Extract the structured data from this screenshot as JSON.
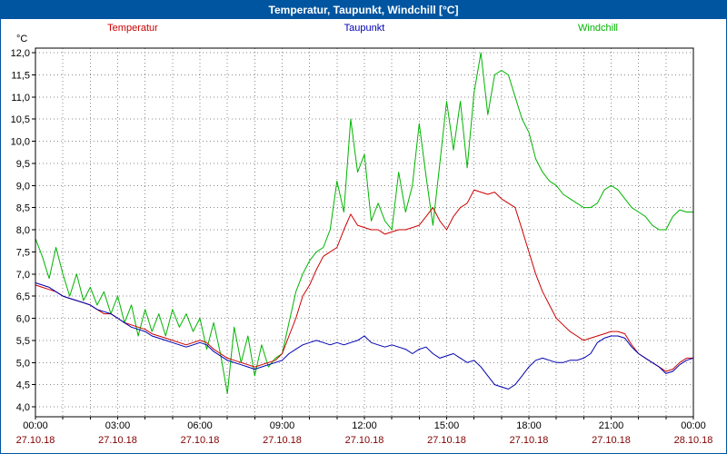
{
  "window": {
    "title": "Temperatur, Taupunkt, Windchill [°C]"
  },
  "legend": [
    {
      "label": "Temperatur",
      "color": "#cc0000"
    },
    {
      "label": "Taupunkt",
      "color": "#0000b0"
    },
    {
      "label": "Windchill",
      "color": "#00b400"
    }
  ],
  "y_axis": {
    "unit": "°C"
  },
  "chart_data": {
    "type": "line",
    "title": "Temperatur, Taupunkt, Windchill [°C]",
    "xlabel": "",
    "ylabel": "°C",
    "ylim": [
      4.0,
      12.0
    ],
    "y_step": 0.5,
    "x_range_hours": [
      0,
      24
    ],
    "x_start_hour": 0,
    "x_step_hours": 0.25,
    "grid": {
      "vertical_every_hours": 1,
      "horizontal_every_deg": 0.5,
      "style": "dashed"
    },
    "legend_position": "top",
    "y_ticks": [
      {
        "value": 4.0,
        "label": "4,0"
      },
      {
        "value": 4.5,
        "label": "4,5"
      },
      {
        "value": 5.0,
        "label": "5,0"
      },
      {
        "value": 5.5,
        "label": "5,5"
      },
      {
        "value": 6.0,
        "label": "6,0"
      },
      {
        "value": 6.5,
        "label": "6,5"
      },
      {
        "value": 7.0,
        "label": "7,0"
      },
      {
        "value": 7.5,
        "label": "7,5"
      },
      {
        "value": 8.0,
        "label": "8,0"
      },
      {
        "value": 8.5,
        "label": "8,5"
      },
      {
        "value": 9.0,
        "label": "9,0"
      },
      {
        "value": 9.5,
        "label": "9,5"
      },
      {
        "value": 10.0,
        "label": "10,0"
      },
      {
        "value": 10.5,
        "label": "10,5"
      },
      {
        "value": 11.0,
        "label": "11,0"
      },
      {
        "value": 11.5,
        "label": "11,5"
      },
      {
        "value": 12.0,
        "label": "12,0"
      }
    ],
    "x_ticks": [
      {
        "hour": 0,
        "time": "00:00",
        "date": "27.10.18"
      },
      {
        "hour": 3,
        "time": "03:00",
        "date": "27.10.18"
      },
      {
        "hour": 6,
        "time": "06:00",
        "date": "27.10.18"
      },
      {
        "hour": 9,
        "time": "09:00",
        "date": "27.10.18"
      },
      {
        "hour": 12,
        "time": "12:00",
        "date": "27.10.18"
      },
      {
        "hour": 15,
        "time": "15:00",
        "date": "27.10.18"
      },
      {
        "hour": 18,
        "time": "18:00",
        "date": "27.10.18"
      },
      {
        "hour": 21,
        "time": "21:00",
        "date": "27.10.18"
      },
      {
        "hour": 24,
        "time": "00:00",
        "date": "28.10.18"
      }
    ],
    "series": [
      {
        "name": "Temperatur",
        "color": "#cc0000",
        "values": [
          6.75,
          6.7,
          6.65,
          6.6,
          6.5,
          6.45,
          6.4,
          6.35,
          6.3,
          6.2,
          6.1,
          6.1,
          6.0,
          5.9,
          5.85,
          5.8,
          5.75,
          5.65,
          5.6,
          5.55,
          5.5,
          5.45,
          5.4,
          5.45,
          5.5,
          5.45,
          5.3,
          5.2,
          5.1,
          5.05,
          5.0,
          4.95,
          4.9,
          4.95,
          5.0,
          5.05,
          5.2,
          5.6,
          6.0,
          6.5,
          6.75,
          7.1,
          7.4,
          7.5,
          7.6,
          8.0,
          8.35,
          8.1,
          8.05,
          8.0,
          8.0,
          7.9,
          7.95,
          8.0,
          8.0,
          8.05,
          8.1,
          8.3,
          8.5,
          8.2,
          8.0,
          8.3,
          8.5,
          8.6,
          8.9,
          8.85,
          8.8,
          8.85,
          8.7,
          8.6,
          8.5,
          8.0,
          7.5,
          7.0,
          6.6,
          6.3,
          6.0,
          5.85,
          5.7,
          5.6,
          5.5,
          5.55,
          5.6,
          5.65,
          5.7,
          5.7,
          5.65,
          5.4,
          5.2,
          5.1,
          5.0,
          4.9,
          4.8,
          4.85,
          5.0,
          5.1,
          5.1
        ]
      },
      {
        "name": "Taupunkt",
        "color": "#0000b0",
        "values": [
          6.8,
          6.75,
          6.7,
          6.6,
          6.5,
          6.45,
          6.4,
          6.35,
          6.3,
          6.2,
          6.15,
          6.1,
          6.0,
          5.9,
          5.8,
          5.75,
          5.7,
          5.6,
          5.55,
          5.5,
          5.45,
          5.4,
          5.35,
          5.4,
          5.45,
          5.4,
          5.25,
          5.15,
          5.05,
          5.0,
          4.95,
          4.9,
          4.85,
          4.9,
          4.95,
          5.0,
          5.05,
          5.2,
          5.3,
          5.4,
          5.45,
          5.5,
          5.45,
          5.4,
          5.45,
          5.4,
          5.45,
          5.5,
          5.6,
          5.45,
          5.4,
          5.35,
          5.4,
          5.35,
          5.3,
          5.2,
          5.3,
          5.35,
          5.2,
          5.1,
          5.15,
          5.2,
          5.1,
          5.0,
          5.05,
          4.9,
          4.7,
          4.5,
          4.45,
          4.4,
          4.5,
          4.7,
          4.9,
          5.05,
          5.1,
          5.05,
          5.0,
          5.0,
          5.05,
          5.05,
          5.1,
          5.2,
          5.45,
          5.55,
          5.6,
          5.6,
          5.55,
          5.35,
          5.2,
          5.1,
          5.0,
          4.9,
          4.75,
          4.8,
          4.95,
          5.05,
          5.1
        ]
      },
      {
        "name": "Windchill",
        "color": "#00b400",
        "values": [
          7.8,
          7.4,
          6.9,
          7.6,
          7.0,
          6.5,
          7.0,
          6.4,
          6.7,
          6.3,
          6.6,
          6.1,
          6.5,
          5.9,
          6.3,
          5.6,
          6.2,
          5.7,
          6.1,
          5.6,
          6.2,
          5.8,
          6.1,
          5.7,
          6.0,
          5.3,
          5.9,
          5.2,
          4.3,
          5.8,
          5.0,
          5.6,
          4.7,
          5.4,
          4.9,
          5.1,
          5.2,
          5.9,
          6.6,
          7.0,
          7.3,
          7.5,
          7.6,
          8.0,
          9.1,
          8.4,
          10.5,
          9.3,
          9.7,
          8.2,
          8.6,
          8.2,
          8.0,
          9.3,
          8.4,
          9.0,
          10.4,
          9.2,
          8.1,
          9.5,
          10.9,
          9.8,
          10.9,
          9.4,
          11.1,
          12.0,
          10.6,
          11.5,
          11.6,
          11.5,
          11.0,
          10.5,
          10.2,
          9.6,
          9.3,
          9.1,
          9.0,
          8.8,
          8.7,
          8.6,
          8.5,
          8.5,
          8.6,
          8.9,
          9.0,
          8.9,
          8.7,
          8.5,
          8.4,
          8.3,
          8.1,
          8.0,
          8.0,
          8.3,
          8.45,
          8.4,
          8.4
        ]
      }
    ]
  }
}
